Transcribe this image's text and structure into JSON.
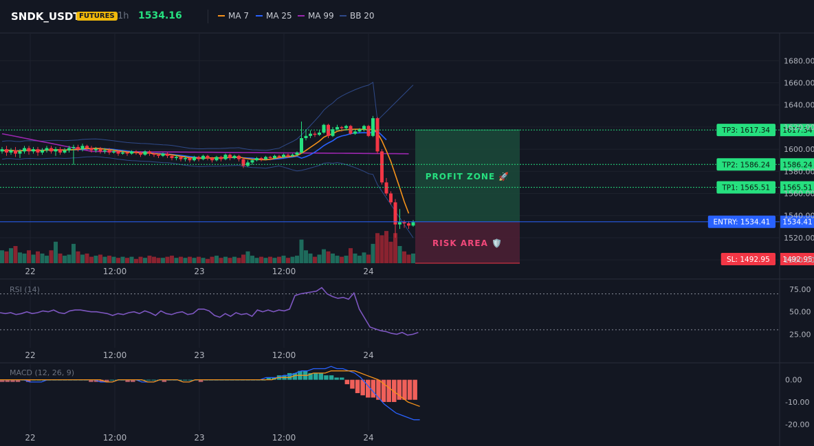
{
  "header": {
    "symbol": "SNDK_USDT",
    "badge": "FUTURES",
    "timeframe": "1h",
    "price": "1534.16",
    "legend": [
      {
        "label": "MA 7",
        "color": "#f7931a"
      },
      {
        "label": "MA 25",
        "color": "#2962ff"
      },
      {
        "label": "MA 99",
        "color": "#9c27b0"
      },
      {
        "label": "BB 20",
        "color": "#2f4a8a"
      }
    ]
  },
  "colors": {
    "up": "#26a69a",
    "upBright": "#26e07f",
    "down": "#f23645",
    "grid": "#1e222d",
    "bg": "#131722"
  },
  "chart_data": [
    {
      "type": "candlestick",
      "x_ticks": [
        "22",
        "12:00",
        "23",
        "12:00",
        "24"
      ],
      "y_ticks": [
        "1500.00",
        "1520.00",
        "1540.00",
        "1560.00",
        "1580.00",
        "1600.00",
        "1620.00",
        "1640.00",
        "1660.00",
        "1680.00"
      ],
      "ylim": [
        1497,
        1705
      ],
      "series_legend": [
        "MA 7",
        "MA 25",
        "MA 99",
        "BB 20"
      ],
      "candles": [
        [
          1598,
          1600,
          1596,
          1602,
          60
        ],
        [
          1600,
          1597,
          1594,
          1603,
          55
        ],
        [
          1597,
          1599,
          1595,
          1601,
          70
        ],
        [
          1599,
          1596,
          1593,
          1602,
          80
        ],
        [
          1596,
          1598,
          1592,
          1600,
          50
        ],
        [
          1598,
          1601,
          1596,
          1603,
          45
        ],
        [
          1601,
          1598,
          1595,
          1603,
          60
        ],
        [
          1598,
          1600,
          1596,
          1602,
          40
        ],
        [
          1600,
          1597,
          1594,
          1602,
          55
        ],
        [
          1597,
          1599,
          1595,
          1601,
          45
        ],
        [
          1599,
          1601,
          1597,
          1603,
          35
        ],
        [
          1601,
          1598,
          1596,
          1603,
          60
        ],
        [
          1598,
          1600,
          1594,
          1602,
          100
        ],
        [
          1600,
          1597,
          1595,
          1602,
          45
        ],
        [
          1597,
          1599,
          1596,
          1601,
          35
        ],
        [
          1599,
          1601,
          1597,
          1603,
          40
        ],
        [
          1601,
          1602,
          1586,
          1604,
          90
        ],
        [
          1602,
          1600,
          1598,
          1604,
          55
        ],
        [
          1600,
          1603,
          1598,
          1605,
          40
        ],
        [
          1603,
          1601,
          1599,
          1604,
          45
        ],
        [
          1601,
          1599,
          1597,
          1603,
          30
        ],
        [
          1599,
          1600,
          1597,
          1602,
          35
        ],
        [
          1600,
          1598,
          1596,
          1602,
          40
        ],
        [
          1598,
          1599,
          1596,
          1601,
          30
        ],
        [
          1599,
          1597,
          1595,
          1601,
          35
        ],
        [
          1597,
          1598,
          1596,
          1600,
          30
        ],
        [
          1598,
          1596,
          1594,
          1599,
          25
        ],
        [
          1596,
          1597,
          1595,
          1599,
          30
        ],
        [
          1597,
          1596,
          1594,
          1598,
          25
        ],
        [
          1596,
          1598,
          1595,
          1599,
          30
        ],
        [
          1598,
          1597,
          1595,
          1599,
          20
        ],
        [
          1597,
          1595,
          1593,
          1598,
          30
        ],
        [
          1595,
          1598,
          1594,
          1599,
          25
        ],
        [
          1598,
          1596,
          1594,
          1599,
          35
        ],
        [
          1596,
          1595,
          1593,
          1597,
          30
        ],
        [
          1595,
          1594,
          1592,
          1596,
          25
        ],
        [
          1594,
          1596,
          1593,
          1597,
          25
        ],
        [
          1596,
          1594,
          1592,
          1597,
          30
        ],
        [
          1594,
          1592,
          1590,
          1595,
          35
        ],
        [
          1592,
          1593,
          1590,
          1595,
          25
        ],
        [
          1593,
          1591,
          1589,
          1594,
          30
        ],
        [
          1591,
          1592,
          1589,
          1594,
          25
        ],
        [
          1592,
          1590,
          1588,
          1593,
          30
        ],
        [
          1590,
          1593,
          1589,
          1594,
          25
        ],
        [
          1593,
          1591,
          1589,
          1594,
          30
        ],
        [
          1591,
          1594,
          1590,
          1595,
          25
        ],
        [
          1594,
          1592,
          1590,
          1595,
          20
        ],
        [
          1592,
          1590,
          1588,
          1593,
          30
        ],
        [
          1590,
          1593,
          1589,
          1594,
          35
        ],
        [
          1593,
          1591,
          1589,
          1594,
          25
        ],
        [
          1591,
          1595,
          1590,
          1596,
          30
        ],
        [
          1595,
          1592,
          1590,
          1596,
          25
        ],
        [
          1592,
          1594,
          1591,
          1595,
          30
        ],
        [
          1594,
          1591,
          1589,
          1595,
          25
        ],
        [
          1591,
          1585,
          1583,
          1592,
          40
        ],
        [
          1585,
          1588,
          1584,
          1590,
          55
        ],
        [
          1588,
          1590,
          1586,
          1591,
          35
        ],
        [
          1590,
          1592,
          1589,
          1593,
          25
        ],
        [
          1592,
          1591,
          1589,
          1593,
          30
        ],
        [
          1591,
          1593,
          1590,
          1594,
          25
        ],
        [
          1593,
          1592,
          1590,
          1594,
          30
        ],
        [
          1592,
          1594,
          1591,
          1595,
          25
        ],
        [
          1594,
          1593,
          1592,
          1595,
          30
        ],
        [
          1593,
          1595,
          1592,
          1596,
          35
        ],
        [
          1595,
          1594,
          1592,
          1596,
          25
        ],
        [
          1594,
          1595,
          1593,
          1596,
          30
        ],
        [
          1595,
          1597,
          1594,
          1598,
          35
        ],
        [
          1597,
          1610,
          1596,
          1625,
          110
        ],
        [
          1610,
          1612,
          1608,
          1618,
          60
        ],
        [
          1612,
          1614,
          1610,
          1617,
          45
        ],
        [
          1614,
          1613,
          1611,
          1616,
          30
        ],
        [
          1613,
          1615,
          1612,
          1617,
          40
        ],
        [
          1615,
          1622,
          1614,
          1623,
          65
        ],
        [
          1622,
          1612,
          1610,
          1623,
          55
        ],
        [
          1612,
          1618,
          1611,
          1620,
          45
        ],
        [
          1618,
          1620,
          1617,
          1622,
          35
        ],
        [
          1620,
          1619,
          1616,
          1621,
          30
        ],
        [
          1619,
          1621,
          1617,
          1622,
          35
        ],
        [
          1621,
          1614,
          1613,
          1622,
          70
        ],
        [
          1614,
          1616,
          1613,
          1617,
          45
        ],
        [
          1616,
          1618,
          1615,
          1619,
          35
        ],
        [
          1618,
          1621,
          1616,
          1622,
          50
        ],
        [
          1621,
          1612,
          1611,
          1622,
          40
        ],
        [
          1612,
          1628,
          1611,
          1630,
          90
        ],
        [
          1628,
          1598,
          1596,
          1629,
          140
        ],
        [
          1598,
          1570,
          1568,
          1600,
          130
        ],
        [
          1570,
          1560,
          1558,
          1574,
          150
        ],
        [
          1560,
          1552,
          1550,
          1562,
          100
        ],
        [
          1552,
          1532,
          1520,
          1555,
          140
        ],
        [
          1532,
          1534,
          1528,
          1546,
          80
        ],
        [
          1534,
          1533,
          1529,
          1536,
          55
        ],
        [
          1533,
          1531,
          1528,
          1535,
          40
        ],
        [
          1531,
          1534,
          1530,
          1536,
          45
        ]
      ],
      "overlays": {
        "MA 7": [
          1598.5,
          1599.0,
          1599.0,
          1598.6,
          1598.4,
          1599.0,
          1599.2,
          1599.1,
          1598.9,
          1598.9,
          1599.2,
          1599.4,
          1599.5,
          1599.4,
          1599.2,
          1599.4,
          1599.6,
          1599.8,
          1600.3,
          1600.6,
          1600.7,
          1600.8,
          1600.5,
          1600.0,
          1599.6,
          1599.1,
          1598.5,
          1598.0,
          1597.5,
          1597.2,
          1597.0,
          1596.7,
          1596.6,
          1596.4,
          1596.0,
          1595.7,
          1595.4,
          1595.3,
          1594.9,
          1594.3,
          1593.6,
          1593.0,
          1592.4,
          1592.1,
          1591.9,
          1591.9,
          1592.1,
          1592.1,
          1592.1,
          1592.2,
          1592.4,
          1592.6,
          1592.7,
          1592.9,
          1592.0,
          1591.4,
          1590.9,
          1590.8,
          1590.6,
          1590.4,
          1590.9,
          1591.7,
          1592.4,
          1592.9,
          1593.3,
          1593.6,
          1594.3,
          1596.4,
          1598.9,
          1601.7,
          1604.4,
          1607.3,
          1610.8,
          1612.8,
          1614.0,
          1616.2,
          1617.1,
          1617.6,
          1617.9,
          1618.1,
          1618.0,
          1617.9,
          1617.4,
          1618.3,
          1614.9,
          1607.6,
          1598.6,
          1588.9,
          1577.0,
          1565.0,
          1552.6,
          1542.0
        ]
      },
      "bands": {
        "label": "BB 20",
        "upper_end": 1658,
        "lower_end": 1520,
        "basis_end": 1588
      },
      "volume": "bars",
      "levels": [
        {
          "label": "TP3: 1617.34",
          "axis_label": "1617.34",
          "value": 1617.34
        },
        {
          "label": "TP2: 1586.24",
          "axis_label": "1586.24",
          "value": 1586.24
        },
        {
          "label": "TP1: 1565.51",
          "axis_label": "1565.51",
          "value": 1565.51
        },
        {
          "label": "ENTRY: 1534.41",
          "axis_label": "1534.41",
          "value": 1534.41
        },
        {
          "label": "SL: 1492.95",
          "axis_label": "1492.95",
          "value": 1492.95
        }
      ],
      "zones": [
        {
          "label": "PROFIT ZONE 🚀",
          "from": 1534.41,
          "to": 1617.34
        },
        {
          "label": "RISK AREA 🛡️",
          "from": 1497,
          "to": 1534.41
        }
      ]
    },
    {
      "type": "line",
      "title": "RSI (14)",
      "x_ticks": [
        "22",
        "12:00",
        "23",
        "12:00",
        "24"
      ],
      "y_ticks": [
        "25.00",
        "50.00",
        "75.00"
      ],
      "ylim": [
        10,
        85
      ],
      "guides": [
        70,
        30
      ],
      "values": [
        49,
        48,
        49,
        47,
        48,
        50,
        48,
        49,
        51,
        50,
        52,
        49,
        48,
        51,
        52,
        52,
        51,
        50,
        50,
        49,
        48,
        46,
        48,
        47,
        49,
        50,
        48,
        51,
        49,
        46,
        51,
        48,
        47,
        49,
        50,
        47,
        48,
        53,
        53,
        51,
        46,
        44,
        48,
        45,
        49,
        47,
        48,
        45,
        52,
        50,
        52,
        50,
        52,
        51,
        53,
        68,
        70,
        71,
        72,
        73,
        77,
        70,
        67,
        65,
        66,
        64,
        71,
        53,
        43,
        33,
        31,
        29,
        28,
        26,
        25,
        27,
        24,
        25,
        27
      ]
    },
    {
      "type": "bar+line",
      "title": "MACD (12, 26, 9)",
      "x_ticks": [
        "22",
        "12:00",
        "23",
        "12:00",
        "24"
      ],
      "y_ticks": [
        "0.00",
        "-10.00",
        "-20.00"
      ],
      "ylim": [
        -23,
        7
      ],
      "histogram": [
        -1,
        -1,
        -1,
        -1,
        0,
        -1,
        0,
        0,
        0,
        0,
        0,
        0,
        0,
        0,
        0,
        0,
        0,
        -1,
        -1,
        -1,
        -1,
        0,
        0,
        0,
        -1,
        -1,
        0,
        0,
        0,
        0,
        0,
        -1,
        0,
        0,
        0,
        0,
        0,
        0,
        -1,
        0,
        0,
        0,
        0,
        0,
        0,
        0,
        0,
        0,
        0,
        0,
        0,
        1,
        1,
        2,
        2,
        3,
        3,
        4,
        4,
        3,
        3,
        3,
        2,
        2,
        1,
        1,
        -2,
        -4,
        -6,
        -7,
        -8,
        -8,
        -9,
        -10,
        -10,
        -10,
        -9,
        -9,
        -9,
        -9
      ],
      "macd": [
        0,
        0,
        0,
        0,
        0,
        -1,
        -1,
        -1,
        0,
        0,
        0,
        0,
        0,
        0,
        0,
        0,
        0,
        -1,
        -1,
        -1,
        0,
        0,
        0,
        0,
        -1,
        -1,
        -1,
        0,
        0,
        0,
        0,
        -1,
        -1,
        0,
        0,
        0,
        0,
        0,
        0,
        0,
        0,
        0,
        0,
        0,
        0,
        1,
        1,
        1,
        2,
        2,
        3,
        4,
        4,
        5,
        5,
        5,
        6,
        5,
        5,
        4,
        3,
        1,
        -2,
        -5,
        -8,
        -11,
        -13,
        -15,
        -16,
        -17,
        -18,
        -18
      ],
      "signal": [
        0,
        0,
        0,
        0,
        0,
        0,
        0,
        0,
        0,
        0,
        0,
        0,
        0,
        0,
        0,
        0,
        0,
        0,
        -1,
        -1,
        0,
        0,
        0,
        0,
        0,
        -1,
        -1,
        0,
        0,
        0,
        0,
        -1,
        -1,
        0,
        0,
        0,
        0,
        0,
        0,
        0,
        0,
        0,
        0,
        0,
        0,
        0,
        0,
        1,
        1,
        1,
        2,
        2,
        2,
        3,
        3,
        3,
        4,
        4,
        4,
        4,
        4,
        3,
        2,
        1,
        0,
        -2,
        -4,
        -6,
        -8,
        -10,
        -11,
        -12
      ]
    }
  ]
}
